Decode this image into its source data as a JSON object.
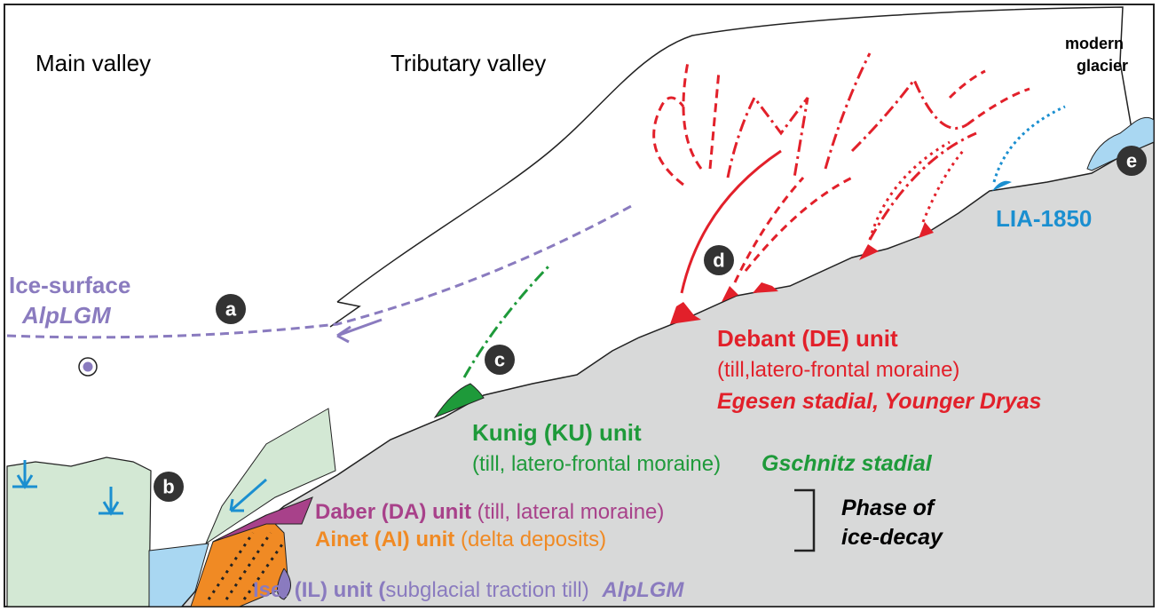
{
  "headings": {
    "main_valley": "Main valley",
    "tributary_valley": "Tributary valley"
  },
  "modern_glacier": [
    "modern",
    "glacier"
  ],
  "ice_surface": {
    "name": "Ice-surface",
    "stage": "AlpLGM"
  },
  "markers": [
    "a",
    "b",
    "c",
    "d",
    "e"
  ],
  "lia": "LIA-1850",
  "units": {
    "debant": {
      "name": "Debant (DE) unit",
      "description": "(till,latero-frontal moraine)",
      "stage": "Egesen stadial, Younger Dryas"
    },
    "kunig": {
      "name": "Kunig (KU) unit",
      "description": "(till, latero-frontal moraine)",
      "stage": "Gschnitz stadial"
    },
    "daber": {
      "name": "Daber (DA) unit",
      "description": "(till, lateral moraine)"
    },
    "ainet": {
      "name": "Ainet (AI) unit",
      "description": "(delta deposits)"
    },
    "isel": {
      "name": "Isel (IL) unit (",
      "description": "subglacial traction till)",
      "stage": "AlpLGM"
    }
  },
  "phase": [
    "Phase of",
    "ice-decay"
  ]
}
